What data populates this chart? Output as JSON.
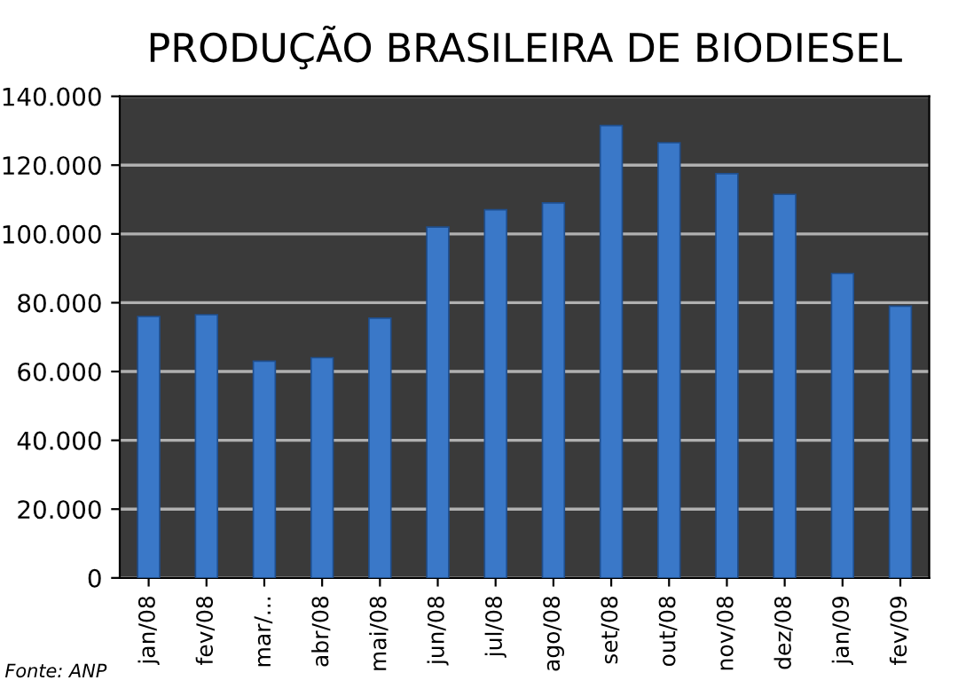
{
  "chart_data": {
    "type": "bar",
    "title": "PRODUÇÃO BRASILEIRA DE BIODIESEL",
    "categories": [
      "jan/08",
      "fev/08",
      "mar/...",
      "abr/08",
      "mai/08",
      "jun/08",
      "jul/08",
      "ago/08",
      "set/08",
      "out/08",
      "nov/08",
      "dez/08",
      "jan/09",
      "fev/09"
    ],
    "values": [
      76000,
      76500,
      63000,
      64000,
      75500,
      102000,
      107000,
      109000,
      131500,
      126500,
      117500,
      111500,
      88500,
      79000
    ],
    "color": "#3a78c8",
    "ylim": [
      0,
      140000
    ],
    "yticks": [
      0,
      {
        "value": 20000,
        "label": "20.000"
      },
      {
        "value": 40000,
        "label": "40.000"
      },
      {
        "value": 60000,
        "label": "60.000"
      },
      {
        "value": 80000,
        "label": "80.000"
      },
      {
        "value": 100000,
        "label": "100.000"
      },
      {
        "value": 120000,
        "label": "120.000"
      },
      {
        "value": 140000,
        "label": "140.000"
      }
    ],
    "grid": "y",
    "annotations": [
      "Fonte: ANP"
    ]
  }
}
